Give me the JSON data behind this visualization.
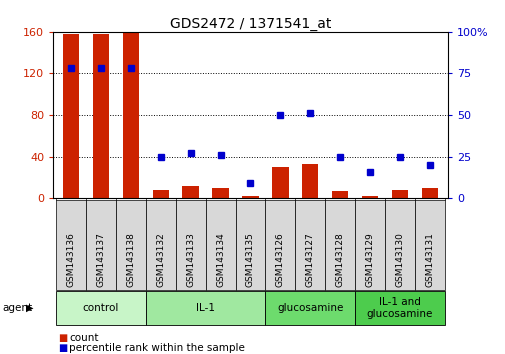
{
  "title": "GDS2472 / 1371541_at",
  "samples": [
    "GSM143136",
    "GSM143137",
    "GSM143138",
    "GSM143132",
    "GSM143133",
    "GSM143134",
    "GSM143135",
    "GSM143126",
    "GSM143127",
    "GSM143128",
    "GSM143129",
    "GSM143130",
    "GSM143131"
  ],
  "counts": [
    158,
    158,
    160,
    8,
    12,
    10,
    2,
    30,
    33,
    7,
    2,
    8,
    10
  ],
  "percentiles": [
    78,
    78,
    78,
    25,
    27,
    26,
    9,
    50,
    51,
    25,
    16,
    25,
    20
  ],
  "groups": [
    {
      "label": "control",
      "start": 0,
      "end": 3,
      "color": "#c8f5c8"
    },
    {
      "label": "IL-1",
      "start": 3,
      "end": 7,
      "color": "#a0e8a0"
    },
    {
      "label": "glucosamine",
      "start": 7,
      "end": 10,
      "color": "#6ddb6d"
    },
    {
      "label": "IL-1 and\nglucosamine",
      "start": 10,
      "end": 13,
      "color": "#4dcc4d"
    }
  ],
  "ylim_left": [
    0,
    160
  ],
  "ylim_right": [
    0,
    100
  ],
  "yticks_left": [
    0,
    40,
    80,
    120,
    160
  ],
  "yticks_right": [
    0,
    25,
    50,
    75,
    100
  ],
  "bar_color": "#cc2200",
  "dot_color": "#0000cc",
  "bg_color": "#ffffff",
  "tick_label_fontsize": 6.5,
  "title_fontsize": 10,
  "group_label_fontsize": 7.5,
  "legend_fontsize": 7.5,
  "xlim": [
    -0.6,
    12.6
  ]
}
